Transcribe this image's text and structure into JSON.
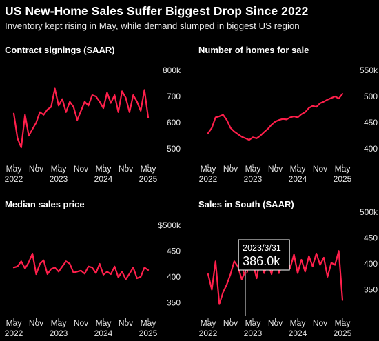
{
  "header": {
    "title": "US New-Home Sales Suffer Biggest Drop Since 2022",
    "subtitle": "Inventory kept rising in May, while demand slumped in biggest US region"
  },
  "line_color": "#ff1f4b",
  "x_ticks": [
    {
      "top": "May",
      "bottom": "2022",
      "month": 0
    },
    {
      "top": "Nov",
      "bottom": "",
      "month": 6
    },
    {
      "top": "May",
      "bottom": "2023",
      "month": 12
    },
    {
      "top": "Nov",
      "bottom": "",
      "month": 18
    },
    {
      "top": "May",
      "bottom": "2024",
      "month": 24
    },
    {
      "top": "Nov",
      "bottom": "",
      "month": 30
    },
    {
      "top": "May",
      "bottom": "2025",
      "month": 36
    }
  ],
  "tooltip": {
    "date": "2023/3/31",
    "value": "386.0k"
  },
  "chart_data": [
    {
      "type": "line",
      "title": "Contract signings (SAAR)",
      "y_unit": "k",
      "ylim": [
        450,
        850
      ],
      "yticks": [
        {
          "value": 800,
          "label": "800k"
        },
        {
          "value": 700,
          "label": "700"
        },
        {
          "value": 600,
          "label": "600"
        },
        {
          "value": 500,
          "label": "500"
        }
      ],
      "x_start": "2022-05",
      "values": [
        635,
        540,
        505,
        630,
        550,
        575,
        600,
        640,
        630,
        650,
        660,
        730,
        665,
        690,
        640,
        680,
        660,
        610,
        645,
        680,
        665,
        705,
        700,
        680,
        655,
        715,
        675,
        705,
        640,
        720,
        695,
        640,
        705,
        680,
        645,
        725,
        620
      ]
    },
    {
      "type": "line",
      "title": "Number of homes for sale",
      "y_unit": "k",
      "ylim": [
        375,
        575
      ],
      "yticks": [
        {
          "value": 550,
          "label": "550k"
        },
        {
          "value": 500,
          "label": "500"
        },
        {
          "value": 450,
          "label": "450"
        },
        {
          "value": 400,
          "label": "400"
        }
      ],
      "x_start": "2022-05",
      "values": [
        430,
        440,
        460,
        462,
        465,
        455,
        440,
        433,
        428,
        423,
        420,
        417,
        422,
        420,
        425,
        432,
        438,
        446,
        452,
        455,
        457,
        456,
        460,
        462,
        460,
        466,
        470,
        478,
        482,
        480,
        487,
        490,
        494,
        497,
        500,
        496,
        505
      ]
    },
    {
      "type": "line",
      "title": "Median sales price",
      "y_unit": "$ k",
      "ylim": [
        325,
        525
      ],
      "yticks": [
        {
          "value": 500,
          "label": "$500k"
        },
        {
          "value": 450,
          "label": "450"
        },
        {
          "value": 400,
          "label": "400"
        },
        {
          "value": 350,
          "label": "350"
        }
      ],
      "x_start": "2022-05",
      "values": [
        418,
        420,
        430,
        416,
        428,
        445,
        405,
        425,
        432,
        405,
        415,
        418,
        410,
        420,
        430,
        425,
        408,
        410,
        412,
        406,
        420,
        418,
        407,
        425,
        404,
        410,
        405,
        420,
        399,
        410,
        395,
        406,
        418,
        397,
        400,
        418,
        413
      ]
    },
    {
      "type": "line",
      "title": "Sales in South (SAAR)",
      "y_unit": "k",
      "ylim": [
        300,
        500
      ],
      "yticks": [
        {
          "value": 500,
          "label": "500k"
        },
        {
          "value": 450,
          "label": "450"
        },
        {
          "value": 400,
          "label": "400"
        },
        {
          "value": 350,
          "label": "350"
        }
      ],
      "x_start": "2022-05",
      "values": [
        380,
        350,
        405,
        322,
        345,
        360,
        380,
        405,
        395,
        370,
        386,
        410,
        402,
        372,
        412,
        382,
        402,
        380,
        418,
        382,
        402,
        412,
        392,
        418,
        382,
        408,
        385,
        415,
        395,
        420,
        398,
        412,
        375,
        402,
        398,
        425,
        330
      ]
    }
  ]
}
